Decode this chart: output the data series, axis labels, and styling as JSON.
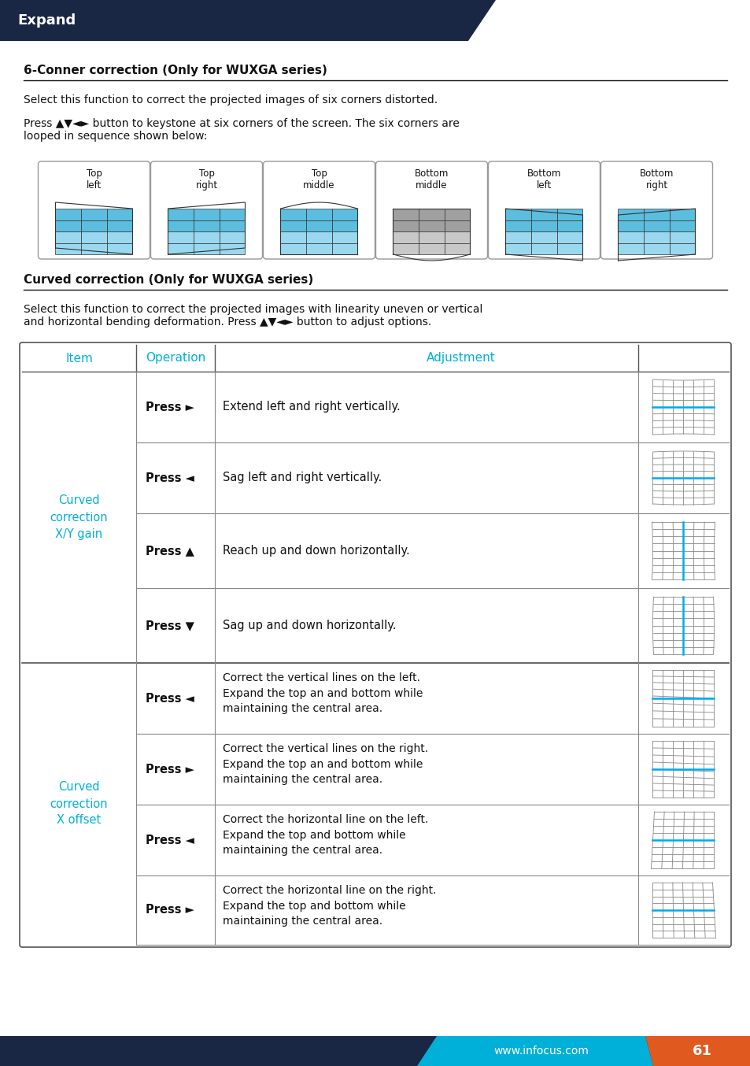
{
  "title": "Expand",
  "header_bg": "#1a2744",
  "header_text_color": "#ffffff",
  "section1_title": "6-Conner correction (Only for WUXGA series)",
  "section1_para1": "Select this function to correct the projected images of six corners distorted.",
  "section1_para2": "Press ▲▼◄► button to keystone at six corners of the screen. The six corners are\nlooped in sequence shown below:",
  "corner_labels": [
    "Top\nleft",
    "Top\nright",
    "Top\nmiddle",
    "Bottom\nmiddle",
    "Bottom\nleft",
    "Bottom\nright"
  ],
  "section2_title": "Curved correction (Only for WUXGA series)",
  "section2_para": "Select this function to correct the projected images with linearity uneven or vertical\nand horizontal bending deformation. Press ▲▼◄► button to adjust options.",
  "table_header_item": "Item",
  "table_header_op": "Operation",
  "table_header_adj": "Adjustment",
  "table_header_color": "#00b0d8",
  "item_col_color": "#00b0d8",
  "footer_bg": "#1a2744",
  "footer_cyan_bg": "#00b0d8",
  "footer_orange_bg": "#e05a20",
  "footer_url": "www.infocus.com",
  "footer_page": "61",
  "body_text_color": "#111111",
  "grid_line_color": "#999999",
  "table_border_color": "#555555"
}
